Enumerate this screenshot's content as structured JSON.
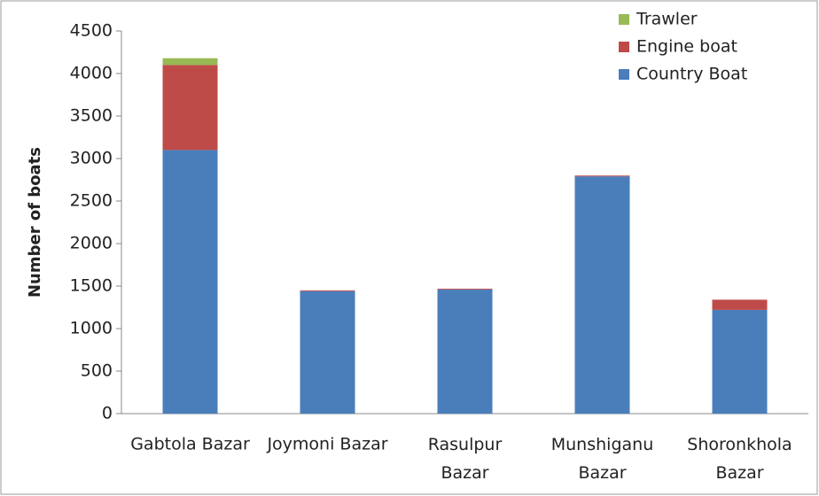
{
  "chart_data": {
    "type": "stacked_bar",
    "y_label": "Number of boats",
    "categories": [
      "Gabtola Bazar",
      "Joymoni Bazar",
      "Rasulpur Bazar",
      "Munshiganu Bazar",
      "Shoronkhola Bazar"
    ],
    "series": [
      {
        "name": "Country Boat",
        "color": "#4a7ebb",
        "values": [
          3100,
          1440,
          1460,
          2790,
          1220
        ]
      },
      {
        "name": "Engine boat",
        "color": "#be4b48",
        "values": [
          1000,
          10,
          10,
          10,
          120
        ]
      },
      {
        "name": "Trawler",
        "color": "#98b954",
        "values": [
          80,
          0,
          0,
          0,
          0
        ]
      }
    ],
    "ylim": [
      0,
      4500
    ],
    "yticks": [
      0,
      500,
      1000,
      1500,
      2000,
      2500,
      3000,
      3500,
      4000,
      4500
    ],
    "legend": "top-right"
  }
}
